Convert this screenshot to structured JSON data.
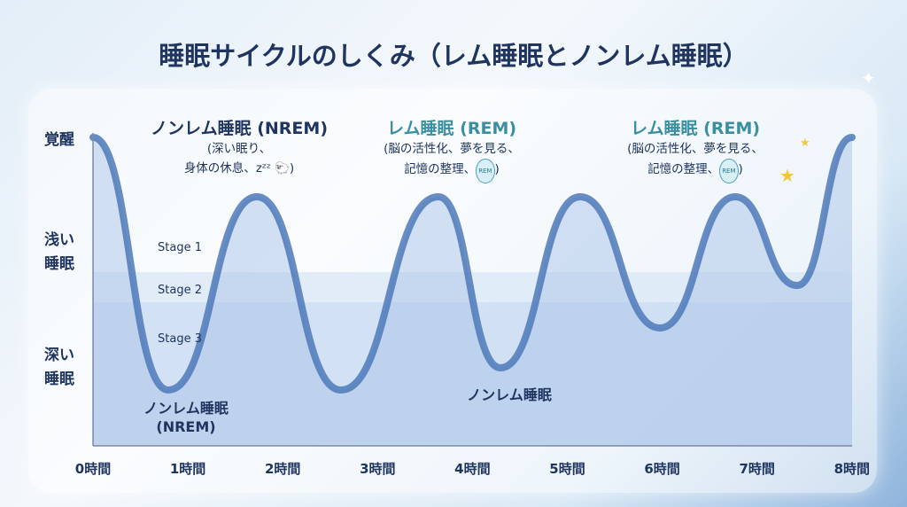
{
  "title": "睡眠サイクルのしくみ（レム睡眠とノンレム睡眠）",
  "y_labels": {
    "awake": "覚醒",
    "light_1": "浅い",
    "light_2": "睡眠",
    "deep_1": "深い",
    "deep_2": "睡眠"
  },
  "stages": [
    "Stage 1",
    "Stage 2",
    "Stage 3"
  ],
  "x_ticks": [
    "0時間",
    "1時間",
    "2時間",
    "3時間",
    "4時間",
    "5時間",
    "6時間",
    "7時間",
    "8時間"
  ],
  "annotations": [
    {
      "heading": "ノンレム睡眠 (NREM)",
      "line1": "(深い眠り、",
      "line2": "身体の休息、",
      "zzz": "zᶻᶻ",
      "close": ")",
      "color": "#1f3560"
    },
    {
      "heading": "レム睡眠 (REM)",
      "line1": "(脳の活性化、夢を見る、",
      "line2": "記憶の整理、",
      "badge": "REM",
      "close": ")",
      "color": "#3a8ea0"
    },
    {
      "heading": "レム睡眠 (REM)",
      "line1": "(脳の活性化、夢を見る、",
      "line2": "記憶の整理、",
      "badge": "REM",
      "close": ")",
      "color": "#3a8ea0"
    }
  ],
  "bottom_labels": {
    "nrem_1": "ノンレム睡眠",
    "nrem_1b": "(NREM)",
    "nrem_2": "ノンレム睡眠"
  },
  "colors": {
    "curve": "#4d79b8",
    "rem_fill": "#9fded8",
    "deep_fill": "#a9c4e8"
  }
}
